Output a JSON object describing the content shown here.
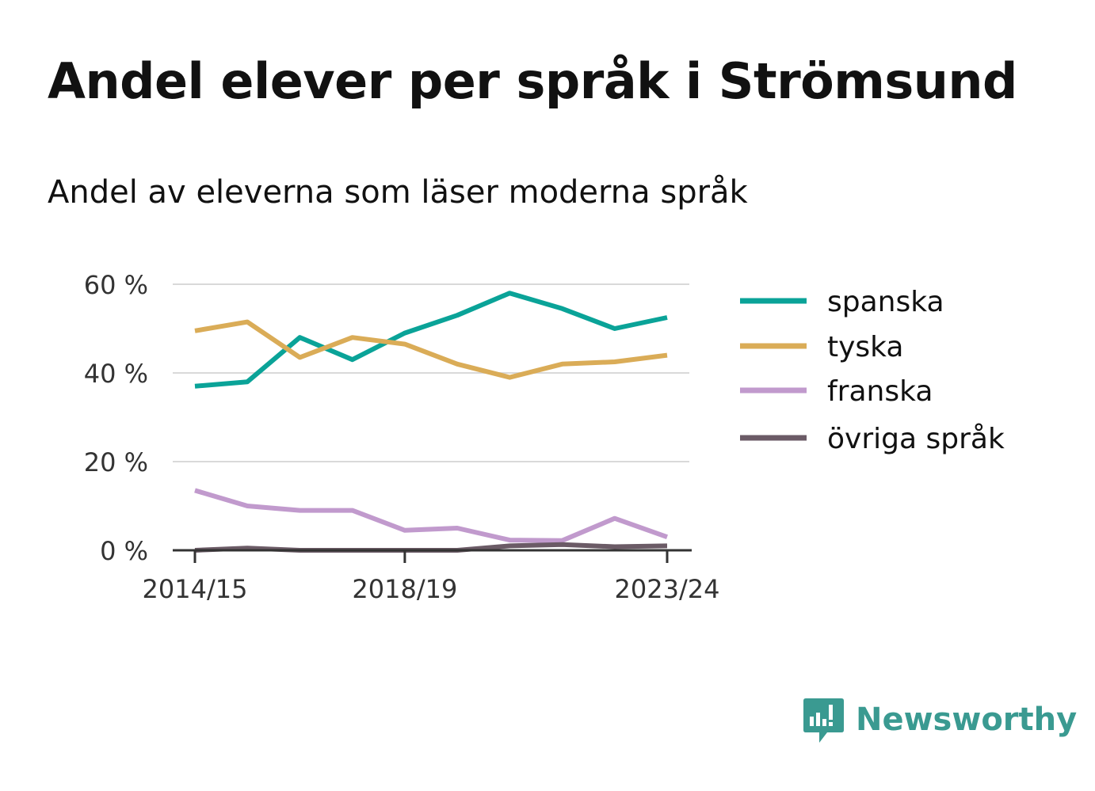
{
  "title": "Andel elever per språk i Strömsund",
  "subtitle": "Andel av eleverna som läser moderna språk",
  "brand": {
    "name": "Newsworthy",
    "color": "#3a9a91",
    "icon": "newsworthy-logo-icon"
  },
  "chart_data": {
    "type": "line",
    "x": [
      "2014/15",
      "2015/16",
      "2016/17",
      "2017/18",
      "2018/19",
      "2019/20",
      "2020/21",
      "2021/22",
      "2022/23",
      "2023/24"
    ],
    "xticks": [
      "2014/15",
      "2018/19",
      "2023/24"
    ],
    "ylim": [
      0,
      60
    ],
    "yticks": [
      0,
      20,
      40,
      60
    ],
    "ytick_labels": [
      "0 %",
      "20 %",
      "40 %",
      "60 %"
    ],
    "grid": true,
    "legend_position": "right",
    "series": [
      {
        "name": "spanska",
        "color": "#0aa398",
        "values": [
          37,
          38,
          48,
          43,
          49,
          53,
          58,
          54.5,
          50,
          52.5
        ]
      },
      {
        "name": "tyska",
        "color": "#daac57",
        "values": [
          49.5,
          51.5,
          43.5,
          48,
          46.5,
          42,
          39,
          42,
          42.5,
          44
        ]
      },
      {
        "name": "franska",
        "color": "#c19acd",
        "values": [
          13.5,
          10,
          9,
          9,
          4.5,
          5,
          2.3,
          2.2,
          7.2,
          3
        ]
      },
      {
        "name": "övriga språk",
        "color": "#6b5b66",
        "values": [
          0,
          0.5,
          0,
          0,
          0,
          0,
          1,
          1.3,
          0.8,
          1
        ]
      }
    ]
  }
}
